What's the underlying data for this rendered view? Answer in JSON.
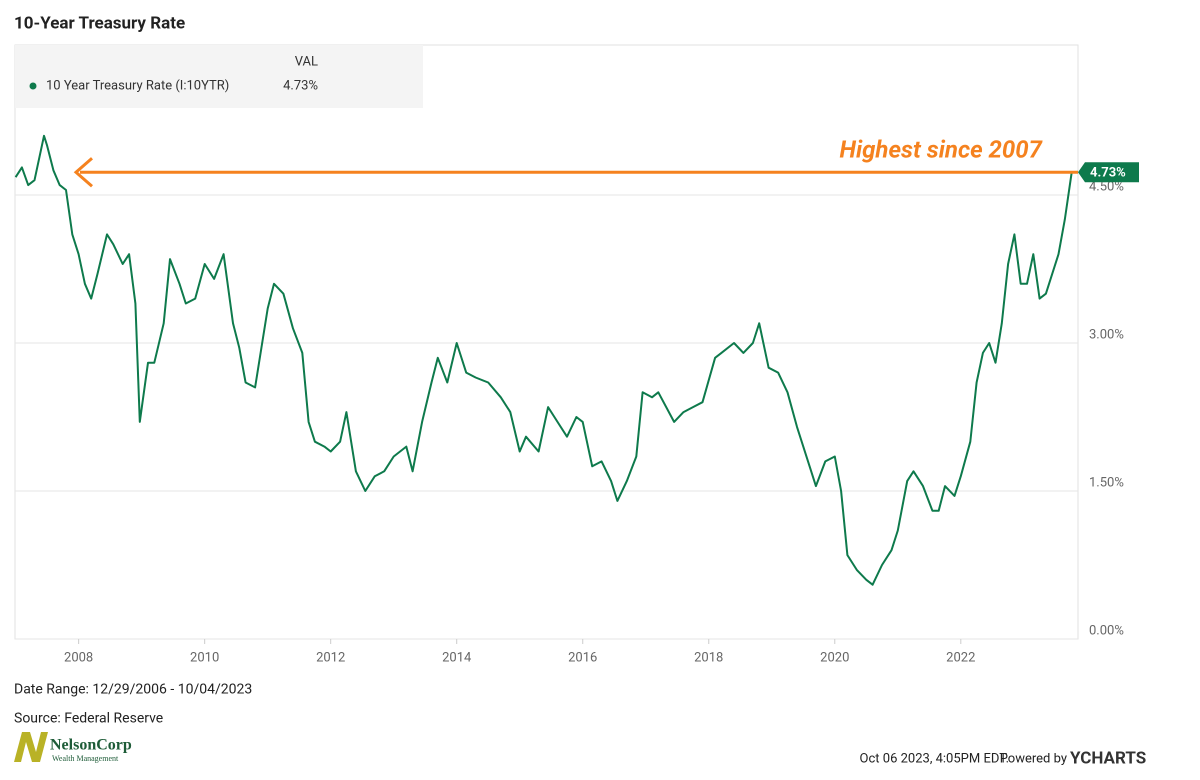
{
  "chart_data": {
    "type": "line",
    "title": "10-Year Treasury Rate",
    "x": [
      2007.0,
      2007.1,
      2007.2,
      2007.3,
      2007.45,
      2007.5,
      2007.6,
      2007.7,
      2007.8,
      2007.9,
      2008.0,
      2008.1,
      2008.2,
      2008.3,
      2008.45,
      2008.55,
      2008.7,
      2008.8,
      2008.9,
      2008.97,
      2009.1,
      2009.2,
      2009.35,
      2009.45,
      2009.6,
      2009.7,
      2009.85,
      2010.0,
      2010.15,
      2010.3,
      2010.45,
      2010.55,
      2010.65,
      2010.8,
      2010.9,
      2011.0,
      2011.1,
      2011.25,
      2011.4,
      2011.55,
      2011.65,
      2011.75,
      2011.9,
      2012.0,
      2012.15,
      2012.25,
      2012.4,
      2012.55,
      2012.7,
      2012.85,
      2013.0,
      2013.2,
      2013.3,
      2013.45,
      2013.6,
      2013.7,
      2013.85,
      2014.0,
      2014.15,
      2014.3,
      2014.5,
      2014.7,
      2014.85,
      2015.0,
      2015.1,
      2015.3,
      2015.45,
      2015.6,
      2015.75,
      2015.9,
      2016.0,
      2016.15,
      2016.3,
      2016.45,
      2016.55,
      2016.7,
      2016.85,
      2016.95,
      2017.1,
      2017.2,
      2017.45,
      2017.6,
      2017.75,
      2017.9,
      2018.1,
      2018.2,
      2018.4,
      2018.55,
      2018.7,
      2018.8,
      2018.95,
      2019.1,
      2019.25,
      2019.4,
      2019.6,
      2019.7,
      2019.85,
      2020.0,
      2020.1,
      2020.2,
      2020.35,
      2020.5,
      2020.6,
      2020.75,
      2020.9,
      2021.0,
      2021.15,
      2021.25,
      2021.4,
      2021.55,
      2021.65,
      2021.75,
      2021.9,
      2022.0,
      2022.15,
      2022.25,
      2022.35,
      2022.45,
      2022.55,
      2022.65,
      2022.75,
      2022.85,
      2022.95,
      2023.05,
      2023.15,
      2023.25,
      2023.35,
      2023.45,
      2023.55,
      2023.65,
      2023.76
    ],
    "series": [
      {
        "name": "10 Year Treasury Rate (I:10YTR)",
        "color": "#0e7a4c",
        "values": [
          4.68,
          4.78,
          4.6,
          4.65,
          5.1,
          5.0,
          4.75,
          4.6,
          4.55,
          4.1,
          3.9,
          3.6,
          3.45,
          3.7,
          4.1,
          4.0,
          3.8,
          3.9,
          3.4,
          2.2,
          2.8,
          2.8,
          3.2,
          3.85,
          3.6,
          3.4,
          3.45,
          3.8,
          3.65,
          3.9,
          3.2,
          2.95,
          2.6,
          2.55,
          2.95,
          3.35,
          3.6,
          3.5,
          3.15,
          2.9,
          2.2,
          2.0,
          1.95,
          1.9,
          2.0,
          2.3,
          1.7,
          1.5,
          1.65,
          1.7,
          1.85,
          1.95,
          1.7,
          2.2,
          2.6,
          2.85,
          2.6,
          3.0,
          2.7,
          2.65,
          2.6,
          2.45,
          2.3,
          1.9,
          2.05,
          1.9,
          2.35,
          2.2,
          2.05,
          2.25,
          2.2,
          1.75,
          1.8,
          1.6,
          1.4,
          1.6,
          1.85,
          2.5,
          2.45,
          2.5,
          2.2,
          2.3,
          2.35,
          2.4,
          2.85,
          2.9,
          3.0,
          2.9,
          3.0,
          3.2,
          2.75,
          2.7,
          2.5,
          2.15,
          1.75,
          1.55,
          1.8,
          1.85,
          1.5,
          0.85,
          0.7,
          0.6,
          0.55,
          0.75,
          0.9,
          1.1,
          1.6,
          1.7,
          1.55,
          1.3,
          1.3,
          1.55,
          1.45,
          1.65,
          2.0,
          2.6,
          2.9,
          3.0,
          2.8,
          3.2,
          3.8,
          4.1,
          3.6,
          3.6,
          3.9,
          3.45,
          3.5,
          3.7,
          3.9,
          4.25,
          4.73
        ],
        "value_labels": [
          null,
          null,
          null,
          null,
          null,
          null,
          null,
          null,
          null,
          null,
          null,
          null,
          null,
          null,
          null,
          null,
          null,
          null,
          null,
          null,
          null,
          null,
          null,
          null,
          null,
          null,
          null,
          null,
          null,
          null,
          null,
          null,
          null,
          null,
          null,
          null,
          null,
          null,
          null,
          null,
          null,
          null,
          null,
          null,
          null,
          null,
          null,
          null,
          null,
          null,
          null,
          null,
          null,
          null,
          null,
          null,
          null,
          null,
          null,
          null,
          null,
          null,
          null,
          null,
          null,
          null,
          null,
          null,
          null,
          null,
          null,
          null,
          null,
          null,
          null,
          null,
          null,
          null,
          null,
          null,
          null,
          null,
          null,
          null,
          null,
          null,
          null,
          null,
          null,
          null,
          null,
          null,
          null,
          null,
          null,
          null,
          null,
          null,
          null,
          null,
          null,
          null,
          null,
          null,
          null,
          null,
          null,
          null,
          null,
          null,
          null,
          null,
          null,
          null,
          null,
          null,
          null,
          null,
          null,
          null,
          null,
          null,
          null,
          null,
          null,
          null,
          null,
          null,
          null,
          null,
          "4.73%"
        ]
      }
    ],
    "legend_header": "VAL",
    "annotation": {
      "text": "Highest since 2007",
      "color": "#f5821f"
    },
    "xlim": [
      2006.99,
      2023.86
    ],
    "xticks": [
      2008,
      2010,
      2012,
      2014,
      2016,
      2018,
      2020,
      2022
    ],
    "ylim": [
      0,
      6.02
    ],
    "yticks": [
      {
        "value": 0,
        "label": "0.00%"
      },
      {
        "value": 1.5,
        "label": "1.50%"
      },
      {
        "value": 3,
        "label": "3.00%"
      },
      {
        "value": 4.5,
        "label": "4.50%"
      }
    ],
    "grid": true,
    "date_range": "Date Range: 12/29/2006 - 10/04/2023",
    "source": "Source: Federal Reserve",
    "timestamp": "Oct 06 2023, 4:05PM EDT.",
    "powered_by": "Powered by",
    "brand": "YCHARTS",
    "logo_name": "NelsonCorp",
    "logo_sub": "Wealth Management"
  }
}
